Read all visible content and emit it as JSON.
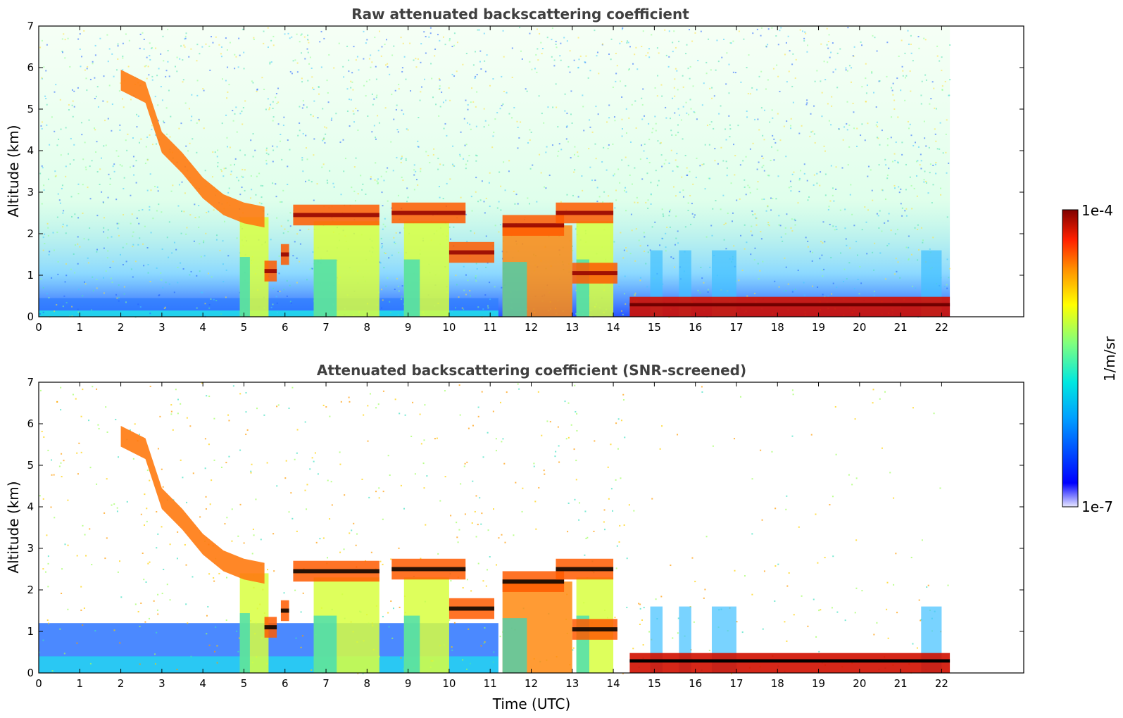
{
  "chart_data": [
    {
      "type": "heatmap",
      "title": "Raw attenuated backscattering coefficient",
      "xlabel": "",
      "ylabel": "Altitude (km)",
      "xlim": [
        0,
        24
      ],
      "ylim": [
        0,
        7
      ],
      "xticks": [
        "0",
        "1",
        "2",
        "3",
        "4",
        "5",
        "6",
        "7",
        "8",
        "9",
        "10",
        "11",
        "12",
        "13",
        "14",
        "15",
        "16",
        "17",
        "18",
        "19",
        "20",
        "21",
        "22"
      ],
      "yticks": [
        "0",
        "1",
        "2",
        "3",
        "4",
        "5",
        "6",
        "7"
      ],
      "data_extent_hours": 22.2,
      "screened": false
    },
    {
      "type": "heatmap",
      "title": "Attenuated backscattering coefficient (SNR-screened)",
      "xlabel": "Time (UTC)",
      "ylabel": "Altitude (km)",
      "xlim": [
        0,
        24
      ],
      "ylim": [
        0,
        7
      ],
      "xticks": [
        "0",
        "1",
        "2",
        "3",
        "4",
        "5",
        "6",
        "7",
        "8",
        "9",
        "10",
        "11",
        "12",
        "13",
        "14",
        "15",
        "16",
        "17",
        "18",
        "19",
        "20",
        "21",
        "22"
      ],
      "yticks": [
        "0",
        "1",
        "2",
        "3",
        "4",
        "5",
        "6",
        "7"
      ],
      "data_extent_hours": 22.2,
      "screened": true
    }
  ],
  "colorbar": {
    "label": "1/m/sr",
    "max_label": "1e-4",
    "min_label": "1e-7",
    "scale": "log",
    "colormap": "jet"
  },
  "features": {
    "descending_layer": [
      [
        2.0,
        5.6
      ],
      [
        2.6,
        5.3
      ],
      [
        3.0,
        4.1
      ],
      [
        3.5,
        3.6
      ],
      [
        4.0,
        3.0
      ],
      [
        4.5,
        2.6
      ],
      [
        5.0,
        2.4
      ],
      [
        5.5,
        2.3
      ]
    ],
    "cloud_segments": [
      {
        "t0": 6.2,
        "t1": 8.3,
        "alt": 2.45
      },
      {
        "t0": 8.6,
        "t1": 10.4,
        "alt": 2.5
      },
      {
        "t0": 10.0,
        "t1": 11.1,
        "alt": 1.55
      },
      {
        "t0": 11.3,
        "t1": 12.8,
        "alt": 2.2
      },
      {
        "t0": 12.6,
        "t1": 14.0,
        "alt": 2.5
      },
      {
        "t0": 13.0,
        "t1": 14.1,
        "alt": 1.05
      },
      {
        "t0": 5.5,
        "t1": 5.8,
        "alt": 1.1
      },
      {
        "t0": 5.9,
        "t1": 6.1,
        "alt": 1.5
      }
    ],
    "virga_columns": [
      [
        4.9,
        5.6
      ],
      [
        6.7,
        8.3
      ],
      [
        8.9,
        10.0
      ],
      [
        11.3,
        13.0
      ],
      [
        13.1,
        14.0
      ]
    ],
    "low_cloud": {
      "t0": 14.4,
      "t1": 22.2,
      "alt": 0.3
    },
    "convective_columns": [
      [
        14.9,
        15.2
      ],
      [
        15.6,
        15.9
      ],
      [
        16.4,
        17.0
      ],
      [
        21.5,
        22.0
      ]
    ]
  }
}
